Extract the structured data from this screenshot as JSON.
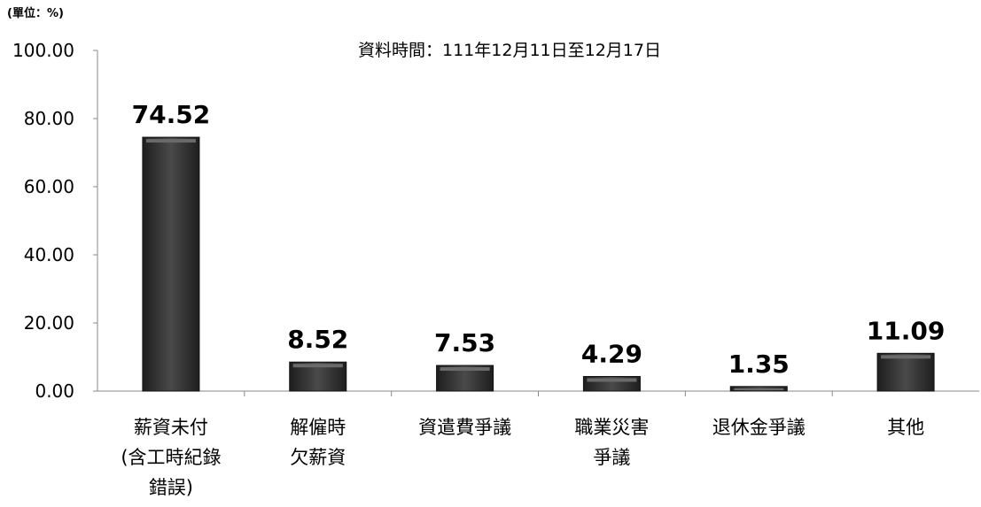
{
  "unit_label": "(單位：%)",
  "chart_data": {
    "type": "bar",
    "subtitle": "資料時間：111年12月11日至12月17日",
    "categories": [
      [
        "薪資未付",
        "(含工時紀錄",
        "錯誤)"
      ],
      [
        "解僱時",
        "欠薪資"
      ],
      [
        "資遣費爭議"
      ],
      [
        "職業災害",
        "爭議"
      ],
      [
        "退休金爭議"
      ],
      [
        "其他"
      ]
    ],
    "values": [
      74.52,
      8.52,
      7.53,
      4.29,
      1.35,
      11.09
    ],
    "data_labels": [
      "74.52",
      "8.52",
      "7.53",
      "4.29",
      "1.35",
      "11.09"
    ],
    "y_ticks": [
      "0.00",
      "20.00",
      "40.00",
      "60.00",
      "80.00",
      "100.00"
    ],
    "ylim": [
      0,
      100
    ],
    "grid": false,
    "legend": "none",
    "bar_color": "#3a3a3a"
  }
}
